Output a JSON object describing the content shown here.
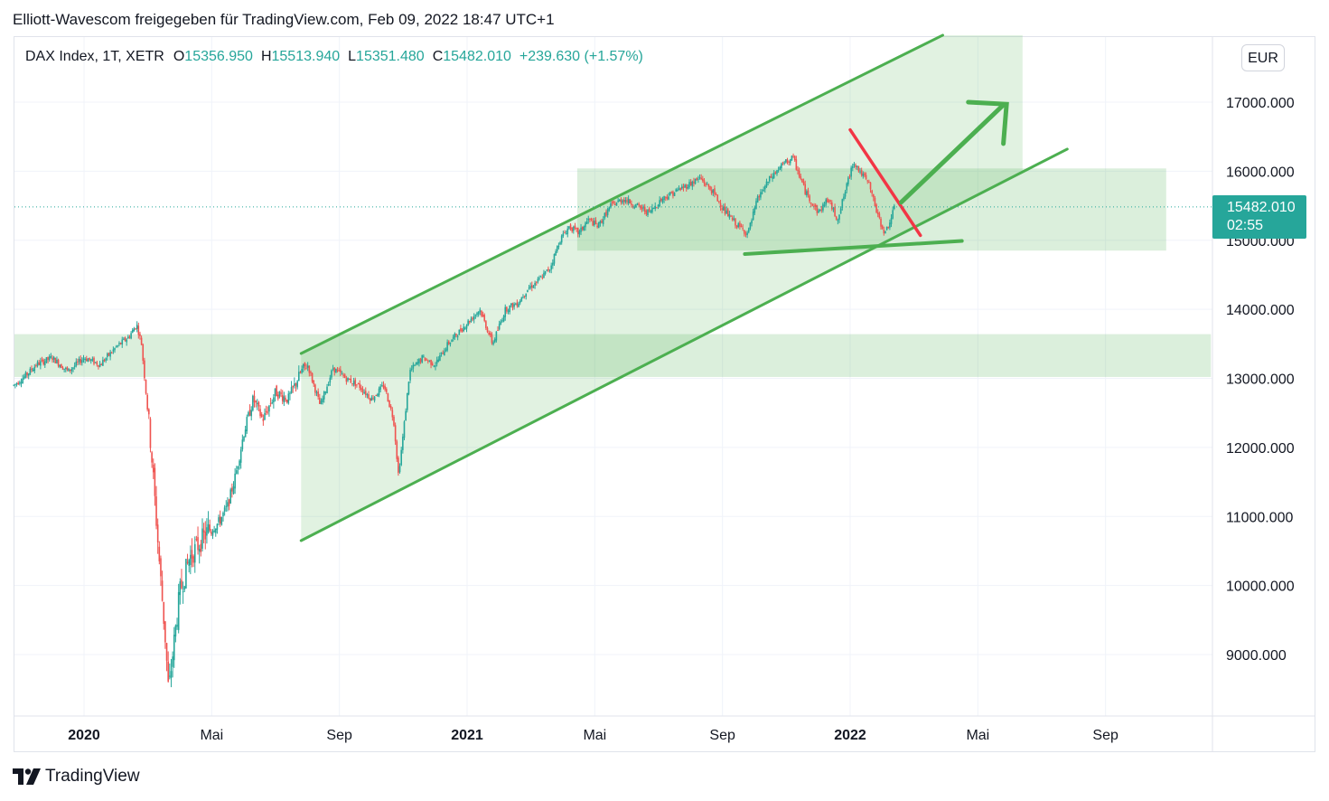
{
  "header": {
    "title": "Elliott-Wavescom freigegeben für TradingView.com, Feb 09, 2022 18:47 UTC+1"
  },
  "legend": {
    "symbol": "DAX Index, 1T, XETR",
    "open_label": "O",
    "open": "15356.950",
    "high_label": "H",
    "high": "15513.940",
    "low_label": "L",
    "low": "15351.480",
    "close_label": "C",
    "close": "15482.010",
    "change": "+239.630 (+1.57%)"
  },
  "currency_button": "EUR",
  "last_price": {
    "value": "15482.010",
    "countdown": "02:55"
  },
  "brand": {
    "label": "TradingView"
  },
  "colors": {
    "up": "#26a69a",
    "down": "#ef5350",
    "zone": "#4caf50",
    "line_green": "#4caf50",
    "line_red": "#f23645"
  },
  "chart_data": {
    "type": "candlestick",
    "ylim": [
      8200,
      17900
    ],
    "y_ticks": [
      {
        "value": 9000,
        "label": "9000.000"
      },
      {
        "value": 10000,
        "label": "10000.000"
      },
      {
        "value": 11000,
        "label": "11000.000"
      },
      {
        "value": 12000,
        "label": "12000.000"
      },
      {
        "value": 13000,
        "label": "13000.000"
      },
      {
        "value": 14000,
        "label": "14000.000"
      },
      {
        "value": 15000,
        "label": "15000.000"
      },
      {
        "value": 16000,
        "label": "16000.000"
      },
      {
        "value": 17000,
        "label": "17000.000"
      }
    ],
    "x_ticks": [
      {
        "month": 0,
        "label": "2020",
        "bold": true
      },
      {
        "month": 4,
        "label": "Mai",
        "bold": false
      },
      {
        "month": 8,
        "label": "Sep",
        "bold": false
      },
      {
        "month": 12,
        "label": "2021",
        "bold": true
      },
      {
        "month": 16,
        "label": "Mai",
        "bold": false
      },
      {
        "month": 20,
        "label": "Sep",
        "bold": false
      },
      {
        "month": 24,
        "label": "2022",
        "bold": true
      },
      {
        "month": 28,
        "label": "Mai",
        "bold": false
      },
      {
        "month": 32,
        "label": "Sep",
        "bold": false
      }
    ],
    "xlim_months": [
      -2.2,
      35.3
    ],
    "price_path": [
      [
        -2.2,
        12900
      ],
      [
        -1.8,
        13050
      ],
      [
        -1.5,
        13200
      ],
      [
        -1.0,
        13300
      ],
      [
        -0.5,
        13100
      ],
      [
        0.0,
        13300
      ],
      [
        0.5,
        13200
      ],
      [
        1.0,
        13450
      ],
      [
        1.4,
        13600
      ],
      [
        1.65,
        13780
      ],
      [
        1.8,
        13500
      ],
      [
        2.1,
        12000
      ],
      [
        2.35,
        10400
      ],
      [
        2.55,
        9200
      ],
      [
        2.65,
        8450
      ],
      [
        2.8,
        9100
      ],
      [
        3.0,
        9900
      ],
      [
        3.3,
        10400
      ],
      [
        3.6,
        10600
      ],
      [
        3.9,
        10800
      ],
      [
        4.2,
        10900
      ],
      [
        4.5,
        11150
      ],
      [
        4.75,
        11600
      ],
      [
        5.0,
        12200
      ],
      [
        5.3,
        12700
      ],
      [
        5.6,
        12400
      ],
      [
        6.0,
        12800
      ],
      [
        6.4,
        12700
      ],
      [
        6.8,
        13100
      ],
      [
        7.0,
        13200
      ],
      [
        7.4,
        12600
      ],
      [
        7.8,
        13150
      ],
      [
        8.2,
        13000
      ],
      [
        8.6,
        12900
      ],
      [
        9.0,
        12700
      ],
      [
        9.4,
        12900
      ],
      [
        9.7,
        12400
      ],
      [
        9.85,
        11600
      ],
      [
        10.0,
        12200
      ],
      [
        10.2,
        13100
      ],
      [
        10.6,
        13300
      ],
      [
        11.0,
        13200
      ],
      [
        11.4,
        13500
      ],
      [
        11.8,
        13700
      ],
      [
        12.0,
        13800
      ],
      [
        12.4,
        14000
      ],
      [
        12.8,
        13500
      ],
      [
        13.2,
        14000
      ],
      [
        13.6,
        14100
      ],
      [
        13.9,
        14300
      ],
      [
        14.2,
        14400
      ],
      [
        14.6,
        14600
      ],
      [
        14.9,
        15000
      ],
      [
        15.2,
        15200
      ],
      [
        15.5,
        15100
      ],
      [
        15.8,
        15300
      ],
      [
        16.1,
        15200
      ],
      [
        16.5,
        15500
      ],
      [
        16.9,
        15600
      ],
      [
        17.3,
        15500
      ],
      [
        17.7,
        15400
      ],
      [
        18.1,
        15600
      ],
      [
        18.5,
        15700
      ],
      [
        18.9,
        15800
      ],
      [
        19.3,
        15900
      ],
      [
        19.7,
        15700
      ],
      [
        20.1,
        15400
      ],
      [
        20.5,
        15200
      ],
      [
        20.8,
        15100
      ],
      [
        21.1,
        15600
      ],
      [
        21.5,
        15900
      ],
      [
        21.9,
        16100
      ],
      [
        22.2,
        16200
      ],
      [
        22.6,
        15700
      ],
      [
        23.0,
        15400
      ],
      [
        23.3,
        15600
      ],
      [
        23.6,
        15300
      ],
      [
        23.9,
        15800
      ],
      [
        24.1,
        16150
      ],
      [
        24.3,
        16000
      ],
      [
        24.6,
        15800
      ],
      [
        24.9,
        15300
      ],
      [
        25.1,
        15100
      ],
      [
        25.3,
        15350
      ],
      [
        25.4,
        15482
      ]
    ],
    "zones": [
      {
        "m0": -2.2,
        "m1": 35.3,
        "y0": 13020,
        "y1": 13640
      },
      {
        "m0": 15.45,
        "m1": 33.9,
        "y0": 14850,
        "y1": 16040
      }
    ],
    "channel": {
      "lower": [
        [
          6.8,
          10650
        ],
        [
          30.8,
          16320
        ]
      ],
      "upper": [
        [
          6.8,
          13360
        ],
        [
          26.9,
          17970
        ]
      ],
      "right_m": 29.4
    },
    "annotations": {
      "support_line": [
        [
          20.7,
          14800
        ],
        [
          27.5,
          14990
        ]
      ],
      "red_line": [
        [
          24.0,
          16600
        ],
        [
          26.2,
          15070
        ]
      ],
      "arrow_line": [
        [
          25.6,
          15550
        ],
        [
          28.8,
          16960
        ]
      ],
      "arrow_head": [
        [
          27.7,
          17000
        ],
        [
          28.9,
          16970
        ],
        [
          28.8,
          16400
        ]
      ]
    }
  }
}
